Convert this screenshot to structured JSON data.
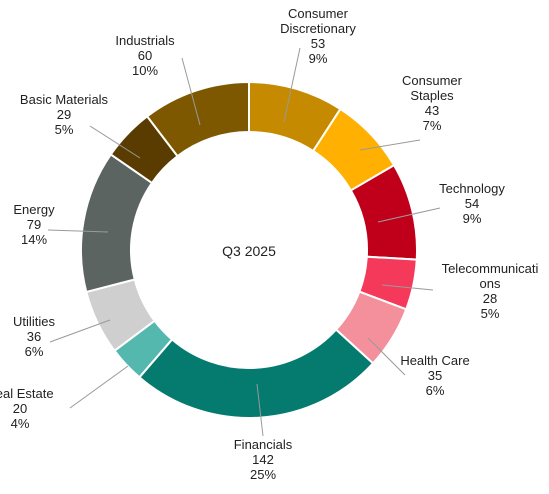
{
  "chart_data": {
    "type": "pie",
    "center_label": "Q3 2025",
    "series": [
      {
        "label_lines": [
          "Consumer",
          "Discretionary"
        ],
        "value": 53,
        "percent": "9%",
        "color": "#c68a00"
      },
      {
        "label_lines": [
          "Consumer",
          "Staples"
        ],
        "value": 43,
        "percent": "7%",
        "color": "#ffb000"
      },
      {
        "label_lines": [
          "Technology"
        ],
        "value": 54,
        "percent": "9%",
        "color": "#c0001a"
      },
      {
        "label_lines": [
          "Telecommunicati",
          "ons"
        ],
        "value": 28,
        "percent": "5%",
        "color": "#f4395a"
      },
      {
        "label_lines": [
          "Health Care"
        ],
        "value": 35,
        "percent": "6%",
        "color": "#f4909c"
      },
      {
        "label_lines": [
          "Financials"
        ],
        "value": 142,
        "percent": "25%",
        "color": "#057b6f"
      },
      {
        "label_lines": [
          "Real Estate"
        ],
        "value": 20,
        "percent": "4%",
        "color": "#55b8ae"
      },
      {
        "label_lines": [
          "Utilities"
        ],
        "value": 36,
        "percent": "6%",
        "color": "#cfcfcf"
      },
      {
        "label_lines": [
          "Energy"
        ],
        "value": 79,
        "percent": "14%",
        "color": "#5c6462"
      },
      {
        "label_lines": [
          "Basic Materials"
        ],
        "value": 29,
        "percent": "5%",
        "color": "#5a3c00"
      },
      {
        "label_lines": [
          "Industrials"
        ],
        "value": 60,
        "percent": "10%",
        "color": "#7d5800"
      }
    ]
  }
}
